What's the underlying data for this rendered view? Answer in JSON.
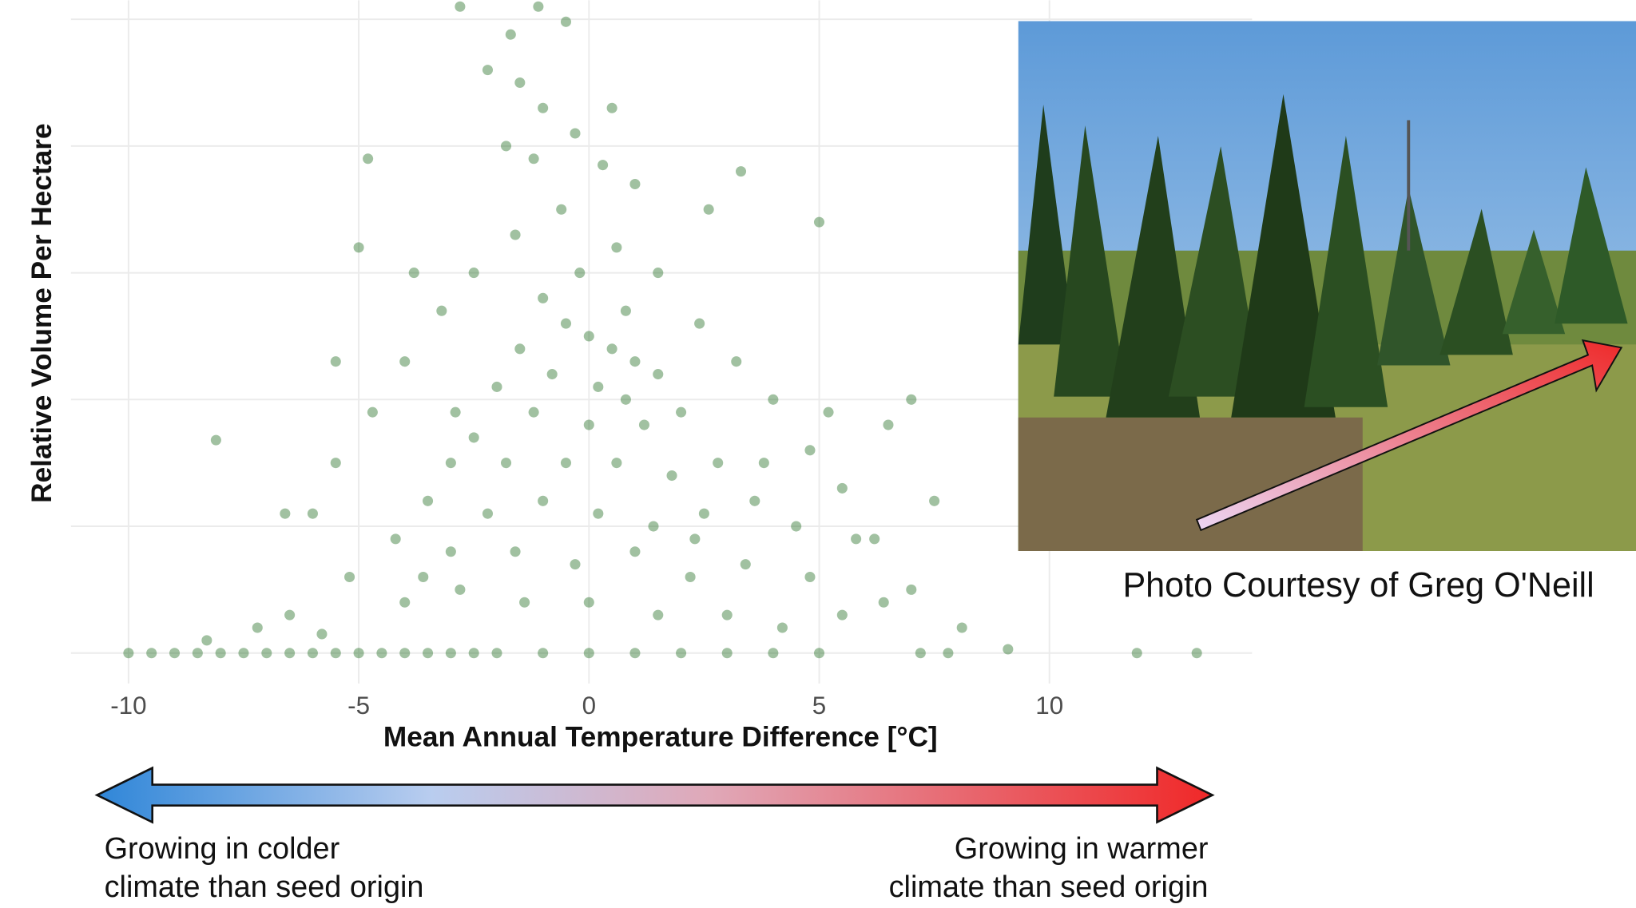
{
  "chart_data": {
    "type": "scatter",
    "x_label": "Mean Annual Temperature Difference [°C]",
    "y_label": "Relative Volume Per Hectare",
    "color": "#1e6b1e",
    "xlim": [
      -11.25,
      14.4
    ],
    "ylim": [
      -0.24,
      5.15
    ],
    "xticks": [
      -10,
      -5,
      0,
      5,
      10
    ],
    "yticks": [
      0,
      1,
      2,
      3,
      4,
      5
    ],
    "grid": true,
    "x": [
      -10,
      -9.5,
      -9,
      -8.5,
      -8,
      -7.5,
      -7,
      -6.5,
      -6,
      -5.5,
      -5,
      -4.5,
      -4,
      -3.5,
      -3,
      -2.5,
      -2,
      -1,
      0,
      1,
      2,
      3,
      4,
      5,
      7.2,
      7.8,
      9.1,
      11.9,
      13.2,
      -2.8,
      -1.1,
      -0.5,
      -1.7,
      -2.2,
      -1.5,
      -1.0,
      0.5,
      -4.8,
      -1.8,
      0.3,
      3.3,
      -0.3,
      -1.2,
      1.0,
      5.0,
      -5.0,
      -8.1,
      -5.5,
      7.0,
      6.5,
      7.5,
      8.1,
      -1,
      -0.5,
      0,
      0.5,
      1,
      -1.5,
      -0.8,
      0.2,
      0.8,
      1.5,
      -2,
      -1.2,
      0,
      1.2,
      2,
      -2.5,
      -3,
      -1.8,
      -0.5,
      0.6,
      1.8,
      2.8,
      -3.5,
      -2.2,
      -1,
      0.2,
      1.4,
      2.5,
      3.6,
      4.5,
      -4.2,
      -3,
      -1.6,
      -0.3,
      1,
      2.2,
      3.4,
      4.8,
      5.8,
      -5.2,
      -4,
      -2.8,
      -1.4,
      0,
      1.5,
      3,
      4.2,
      5.5,
      6.4,
      -6.5,
      -5.8,
      -7.2,
      -8.3,
      -6,
      -5.5,
      -4.7,
      -4,
      -3.2,
      -2.5,
      -1.6,
      -0.6,
      0.6,
      1.5,
      2.4,
      3.2,
      4,
      4.8,
      5.5,
      6.2,
      7,
      -3.8,
      2.6,
      -6.6,
      -0.2,
      0.8,
      -2.9,
      3.8,
      -3.6,
      2.3,
      5.2
    ],
    "values": [
      0,
      0,
      0,
      0,
      0,
      0,
      0,
      0,
      0,
      0,
      0,
      0,
      0,
      0,
      0,
      0,
      0,
      0,
      0,
      0,
      0,
      0,
      0,
      0,
      0,
      0,
      0.03,
      0,
      0,
      5.1,
      5.1,
      4.98,
      4.88,
      4.6,
      4.5,
      4.3,
      4.3,
      3.9,
      4.0,
      3.85,
      3.8,
      4.1,
      3.9,
      3.7,
      3.4,
      3.2,
      1.68,
      2.3,
      2.0,
      1.8,
      1.2,
      0.2,
      2.8,
      2.6,
      2.5,
      2.4,
      2.3,
      2.4,
      2.2,
      2.1,
      2.0,
      2.2,
      2.1,
      1.9,
      1.8,
      1.8,
      1.9,
      1.7,
      1.5,
      1.5,
      1.5,
      1.5,
      1.4,
      1.5,
      1.2,
      1.1,
      1.2,
      1.1,
      1.0,
      1.1,
      1.2,
      1.0,
      0.9,
      0.8,
      0.8,
      0.7,
      0.8,
      0.6,
      0.7,
      0.6,
      0.9,
      0.6,
      0.4,
      0.5,
      0.4,
      0.4,
      0.3,
      0.3,
      0.2,
      0.3,
      0.4,
      0.3,
      0.15,
      0.2,
      0.1,
      1.1,
      1.5,
      1.9,
      2.3,
      2.7,
      3.0,
      3.3,
      3.5,
      3.2,
      3.0,
      2.6,
      2.3,
      2.0,
      1.6,
      1.3,
      0.9,
      0.5,
      3.0,
      3.5,
      1.1,
      3.0,
      2.7,
      1.9,
      1.5,
      0.6,
      0.9,
      1.9
    ]
  },
  "photo": {
    "caption": "Photo Courtesy of Greg O'Neill"
  },
  "scale_arrow": {
    "left": [
      "Growing in colder",
      "climate than seed origin"
    ],
    "right": [
      "Growing in warmer",
      "climate than seed origin"
    ]
  }
}
